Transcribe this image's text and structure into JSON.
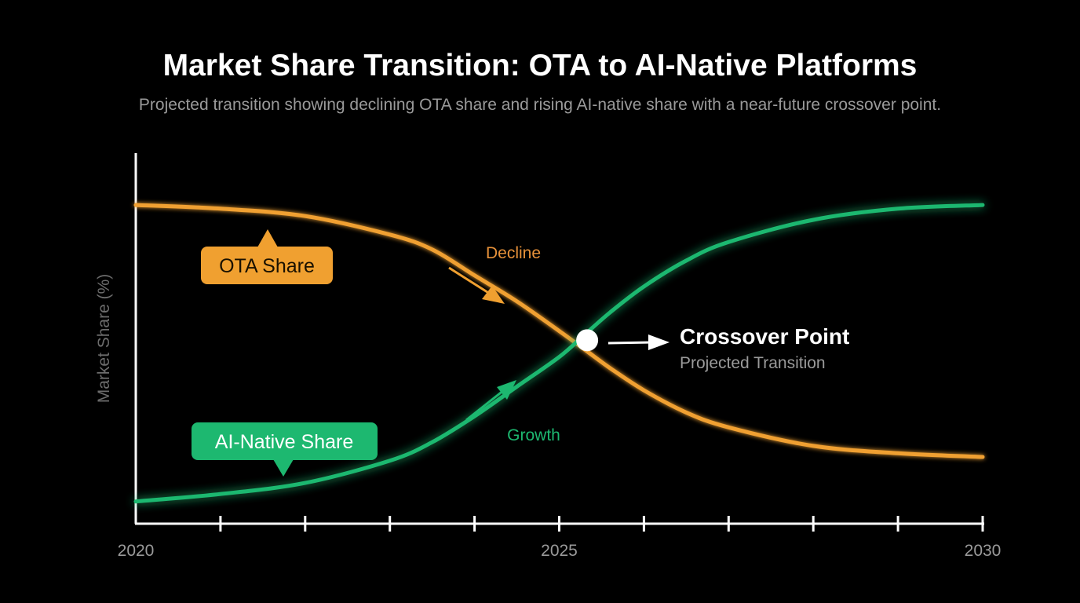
{
  "chart_data": {
    "type": "line",
    "title": "Market Share Transition: OTA to AI-Native Platforms",
    "subtitle": "Projected transition showing declining OTA share and rising AI-native share with a near-future crossover point.",
    "ylabel": "Market Share (%)",
    "xlabel": "",
    "xlim": [
      2020,
      2030
    ],
    "x_tick_labels": [
      "2020",
      "2025",
      "2030"
    ],
    "x_tick_values": [
      2020,
      2025,
      2030
    ],
    "minor_tick_values": [
      2021,
      2022,
      2023,
      2024,
      2025,
      2026,
      2027,
      2028,
      2029,
      2030
    ],
    "grid": false,
    "series": [
      {
        "name": "OTA Share",
        "color": "#f0a030",
        "x": [
          2020,
          2021,
          2022,
          2023,
          2023.5,
          2024,
          2024.5,
          2025,
          2025.3,
          2025.6,
          2026,
          2026.5,
          2027,
          2028,
          2029,
          2030
        ],
        "y": [
          0.86,
          0.85,
          0.83,
          0.78,
          0.74,
          0.67,
          0.6,
          0.52,
          0.47,
          0.42,
          0.36,
          0.3,
          0.26,
          0.21,
          0.19,
          0.18
        ]
      },
      {
        "name": "AI-Native Share",
        "color": "#1db870",
        "x": [
          2020,
          2021,
          2022,
          2023,
          2023.5,
          2024,
          2024.5,
          2025,
          2025.3,
          2025.6,
          2026,
          2026.5,
          2027,
          2028,
          2029,
          2030
        ],
        "y": [
          0.06,
          0.08,
          0.11,
          0.17,
          0.22,
          0.29,
          0.37,
          0.45,
          0.51,
          0.57,
          0.64,
          0.71,
          0.76,
          0.82,
          0.85,
          0.86
        ]
      }
    ],
    "annotations": {
      "ota_label": "OTA Share",
      "ai_label": "AI-Native Share",
      "decline_label": "Decline",
      "growth_label": "Growth",
      "crossover_title": "Crossover Point",
      "crossover_subtitle": "Projected Transition",
      "crossover_x": 2025.33,
      "crossover_y": 0.495
    },
    "colors": {
      "background": "#000000",
      "axis": "#ffffff",
      "ota": "#f0a030",
      "ai": "#1db870",
      "crossover_marker": "#ffffff"
    }
  }
}
